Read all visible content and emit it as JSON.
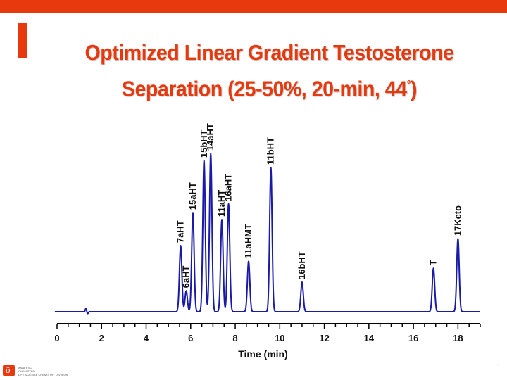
{
  "colors": {
    "accent": "#e8380d",
    "trace": "#1a1aa8",
    "axis": "#000000",
    "label": "#111111"
  },
  "slide": {
    "title_line1": "Optimized Linear Gradient Testosterone",
    "title_line2_main": "Separation (25-50%, 20-min, 44",
    "title_line2_sup": "°",
    "title_line2_end": ")"
  },
  "logo": {
    "icon": "flask-logo-icon",
    "glyph": "ő",
    "line1": "ANALYTIC",
    "line2": "CHEMISTRY",
    "line3": "LIFE SCIENCE CHEMISTRY DIVISION"
  },
  "chart_data": {
    "type": "line",
    "xlabel": "Time (min)",
    "xlim": [
      0,
      19
    ],
    "x_ticks": [
      0,
      2,
      4,
      6,
      8,
      10,
      12,
      14,
      16,
      18
    ],
    "grid": false,
    "baseline_start_min": -0.1,
    "baseline_end_min": 19.0,
    "injection_disturbance_min": 1.3,
    "peaks": [
      {
        "label": "7aHT",
        "time": 5.55,
        "height": 0.38
      },
      {
        "label": "6aHT",
        "time": 5.8,
        "height": 0.12
      },
      {
        "label": "15aHT",
        "time": 6.1,
        "height": 0.57
      },
      {
        "label": "15bHT",
        "time": 6.6,
        "height": 0.87
      },
      {
        "label": "14aHT",
        "time": 6.9,
        "height": 0.91
      },
      {
        "label": "11aHT",
        "time": 7.4,
        "height": 0.53
      },
      {
        "label": "16aHT",
        "time": 7.7,
        "height": 0.62
      },
      {
        "label": "11aHMT",
        "time": 8.6,
        "height": 0.29
      },
      {
        "label": "11bHT",
        "time": 9.6,
        "height": 0.83
      },
      {
        "label": "16bHT",
        "time": 11.0,
        "height": 0.17
      },
      {
        "label": "T",
        "time": 16.9,
        "height": 0.25
      },
      {
        "label": "17Keto",
        "time": 18.0,
        "height": 0.42
      }
    ]
  }
}
